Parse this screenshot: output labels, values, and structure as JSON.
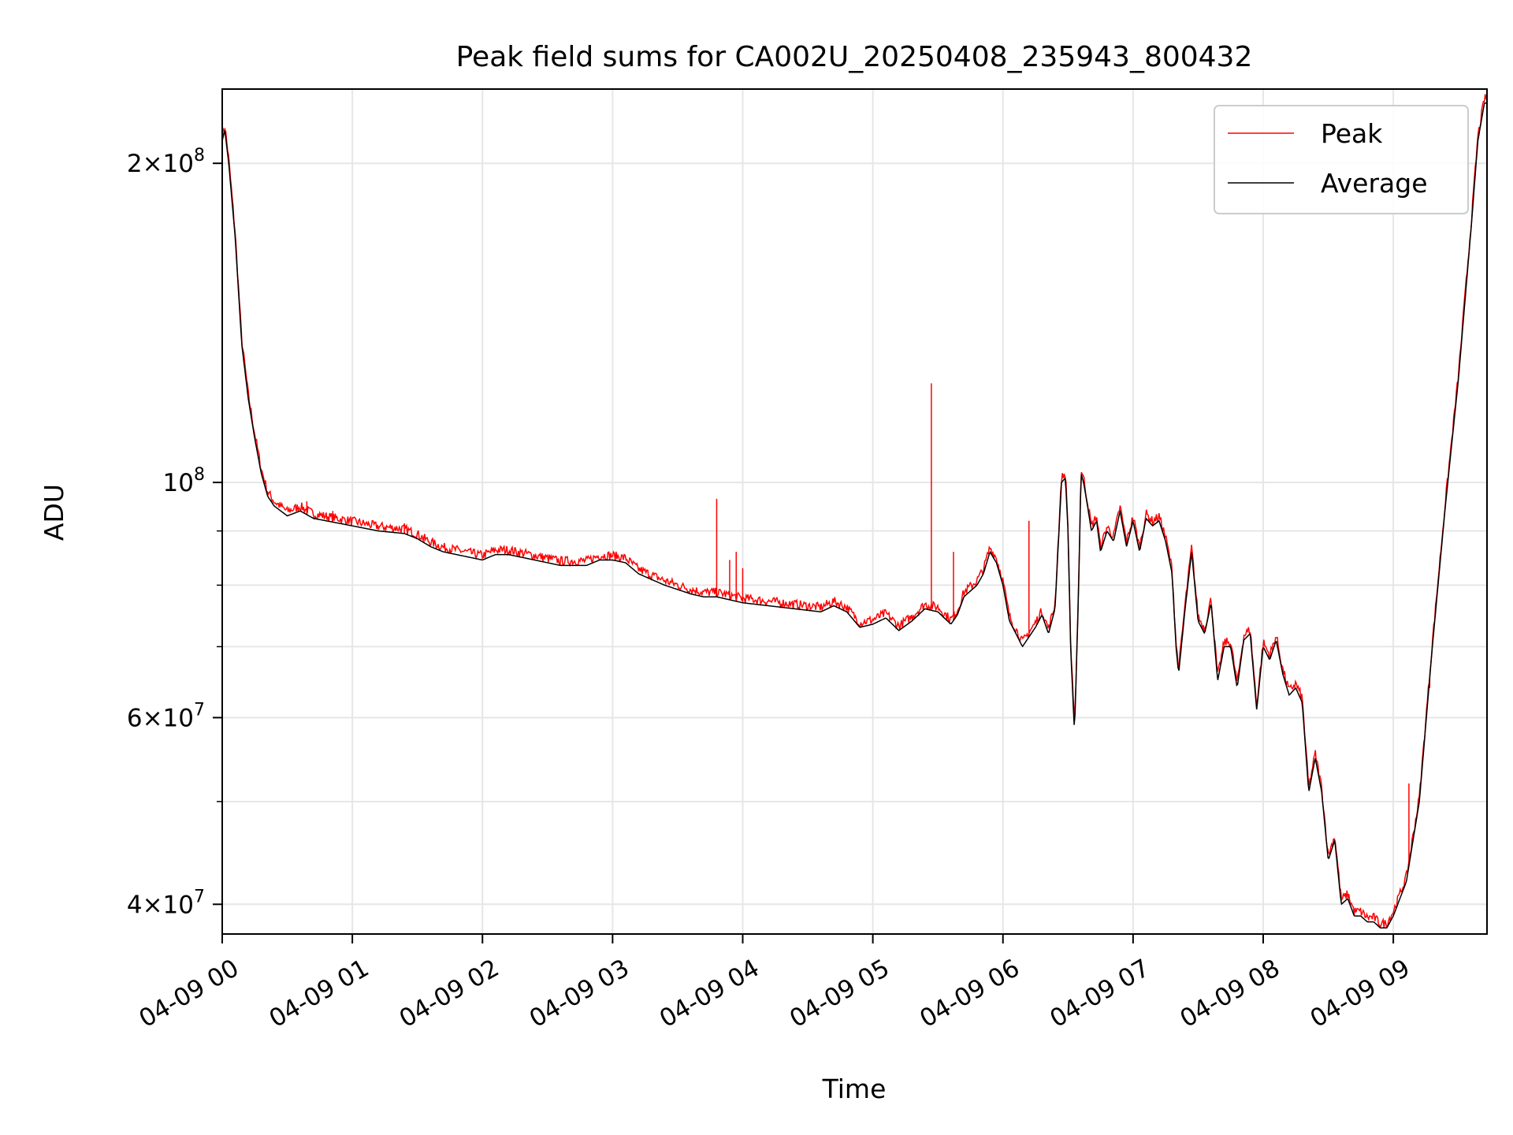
{
  "chart_data": {
    "type": "line",
    "title": "Peak field sums for CA002U_20250408_235943_800432",
    "xlabel": "Time",
    "ylabel": "ADU",
    "yscale": "log",
    "ylim": [
      37500000,
      235000000
    ],
    "xlim_hours": [
      0,
      9.72
    ],
    "grid": true,
    "legend_position": "top-right",
    "x_ticks": [
      {
        "value": 0,
        "label": "04-09 00"
      },
      {
        "value": 1,
        "label": "04-09 01"
      },
      {
        "value": 2,
        "label": "04-09 02"
      },
      {
        "value": 3,
        "label": "04-09 03"
      },
      {
        "value": 4,
        "label": "04-09 04"
      },
      {
        "value": 5,
        "label": "04-09 05"
      },
      {
        "value": 6,
        "label": "04-09 06"
      },
      {
        "value": 7,
        "label": "04-09 07"
      },
      {
        "value": 8,
        "label": "04-09 08"
      },
      {
        "value": 9,
        "label": "04-09 09"
      }
    ],
    "y_ticks": [
      {
        "value": 40000000,
        "mantissa": "4",
        "exp": "7"
      },
      {
        "value": 60000000,
        "mantissa": "6",
        "exp": "7"
      },
      {
        "value": 100000000,
        "mantissa": "",
        "exp": "8"
      },
      {
        "value": 200000000,
        "mantissa": "2",
        "exp": "8"
      }
    ],
    "y_minor_ticks": [
      50000000,
      70000000,
      80000000,
      90000000
    ],
    "series": [
      {
        "name": "Average",
        "color": "#000000",
        "x": [
          0,
          0.02,
          0.05,
          0.1,
          0.15,
          0.2,
          0.25,
          0.3,
          0.35,
          0.4,
          0.5,
          0.6,
          0.7,
          0.8,
          1.0,
          1.2,
          1.4,
          1.5,
          1.6,
          1.7,
          1.8,
          1.9,
          2.0,
          2.1,
          2.2,
          2.3,
          2.4,
          2.5,
          2.6,
          2.7,
          2.8,
          2.9,
          3.0,
          3.1,
          3.2,
          3.4,
          3.6,
          3.7,
          3.8,
          3.9,
          4.0,
          4.2,
          4.4,
          4.6,
          4.7,
          4.8,
          4.9,
          5.0,
          5.1,
          5.2,
          5.3,
          5.4,
          5.5,
          5.6,
          5.65,
          5.7,
          5.8,
          5.85,
          5.9,
          5.95,
          6.0,
          6.05,
          6.1,
          6.15,
          6.2,
          6.25,
          6.3,
          6.35,
          6.4,
          6.45,
          6.48,
          6.5,
          6.52,
          6.55,
          6.58,
          6.6,
          6.62,
          6.65,
          6.68,
          6.72,
          6.75,
          6.8,
          6.85,
          6.9,
          6.95,
          7.0,
          7.05,
          7.1,
          7.15,
          7.2,
          7.25,
          7.3,
          7.33,
          7.35,
          7.4,
          7.45,
          7.5,
          7.55,
          7.6,
          7.65,
          7.7,
          7.75,
          7.8,
          7.85,
          7.9,
          7.95,
          8.0,
          8.05,
          8.1,
          8.15,
          8.2,
          8.25,
          8.3,
          8.35,
          8.4,
          8.45,
          8.5,
          8.55,
          8.6,
          8.65,
          8.7,
          8.75,
          8.8,
          8.85,
          8.9,
          8.95,
          9.0,
          9.1,
          9.2,
          9.3,
          9.4,
          9.5,
          9.6,
          9.65,
          9.7
        ],
        "y": [
          210000000,
          215000000,
          200000000,
          170000000,
          135000000,
          120000000,
          110000000,
          102000000,
          97000000,
          95000000,
          93000000,
          94000000,
          92500000,
          92000000,
          91000000,
          90000000,
          89500000,
          88500000,
          87000000,
          86000000,
          85500000,
          85000000,
          84500000,
          85500000,
          85500000,
          85000000,
          84500000,
          84000000,
          83500000,
          83500000,
          83500000,
          84500000,
          84500000,
          84000000,
          82000000,
          80000000,
          78500000,
          78000000,
          78000000,
          77500000,
          77000000,
          76500000,
          76000000,
          75500000,
          76500000,
          75500000,
          73000000,
          73500000,
          74500000,
          72500000,
          74000000,
          76000000,
          75500000,
          73500000,
          75000000,
          78000000,
          80000000,
          82000000,
          86000000,
          84000000,
          80000000,
          74000000,
          72000000,
          70000000,
          71500000,
          73000000,
          75000000,
          72000000,
          76000000,
          100000000,
          101000000,
          90000000,
          70000000,
          58000000,
          78000000,
          102000000,
          100000000,
          95000000,
          90000000,
          92000000,
          86000000,
          90000000,
          88000000,
          94000000,
          87000000,
          92000000,
          86000000,
          92500000,
          91000000,
          92000000,
          88000000,
          82000000,
          70000000,
          66000000,
          76000000,
          86000000,
          74000000,
          72000000,
          77000000,
          65000000,
          70000000,
          70000000,
          64000000,
          71000000,
          72000000,
          61000000,
          70000000,
          68000000,
          71000000,
          66000000,
          63000000,
          64000000,
          62000000,
          51000000,
          55000000,
          51000000,
          44000000,
          46000000,
          40000000,
          40500000,
          39000000,
          39000000,
          38500000,
          38500000,
          38000000,
          38000000,
          39000000,
          42000000,
          50000000,
          70000000,
          95000000,
          125000000,
          175000000,
          210000000,
          228000000
        ]
      },
      {
        "name": "Peak",
        "color": "#ff0000",
        "spikes": [
          {
            "x": 0.65,
            "y": 96000000
          },
          {
            "x": 0.85,
            "y": 94000000
          },
          {
            "x": 1.4,
            "y": 91500000
          },
          {
            "x": 1.55,
            "y": 89000000
          },
          {
            "x": 3.8,
            "y": 96500000
          },
          {
            "x": 3.9,
            "y": 84500000
          },
          {
            "x": 3.95,
            "y": 86000000
          },
          {
            "x": 4.0,
            "y": 83000000
          },
          {
            "x": 5.45,
            "y": 124000000
          },
          {
            "x": 5.62,
            "y": 86000000
          },
          {
            "x": 6.2,
            "y": 92000000
          },
          {
            "x": 9.12,
            "y": 52000000
          },
          {
            "x": 9.28,
            "y": 64000000
          }
        ]
      }
    ]
  }
}
